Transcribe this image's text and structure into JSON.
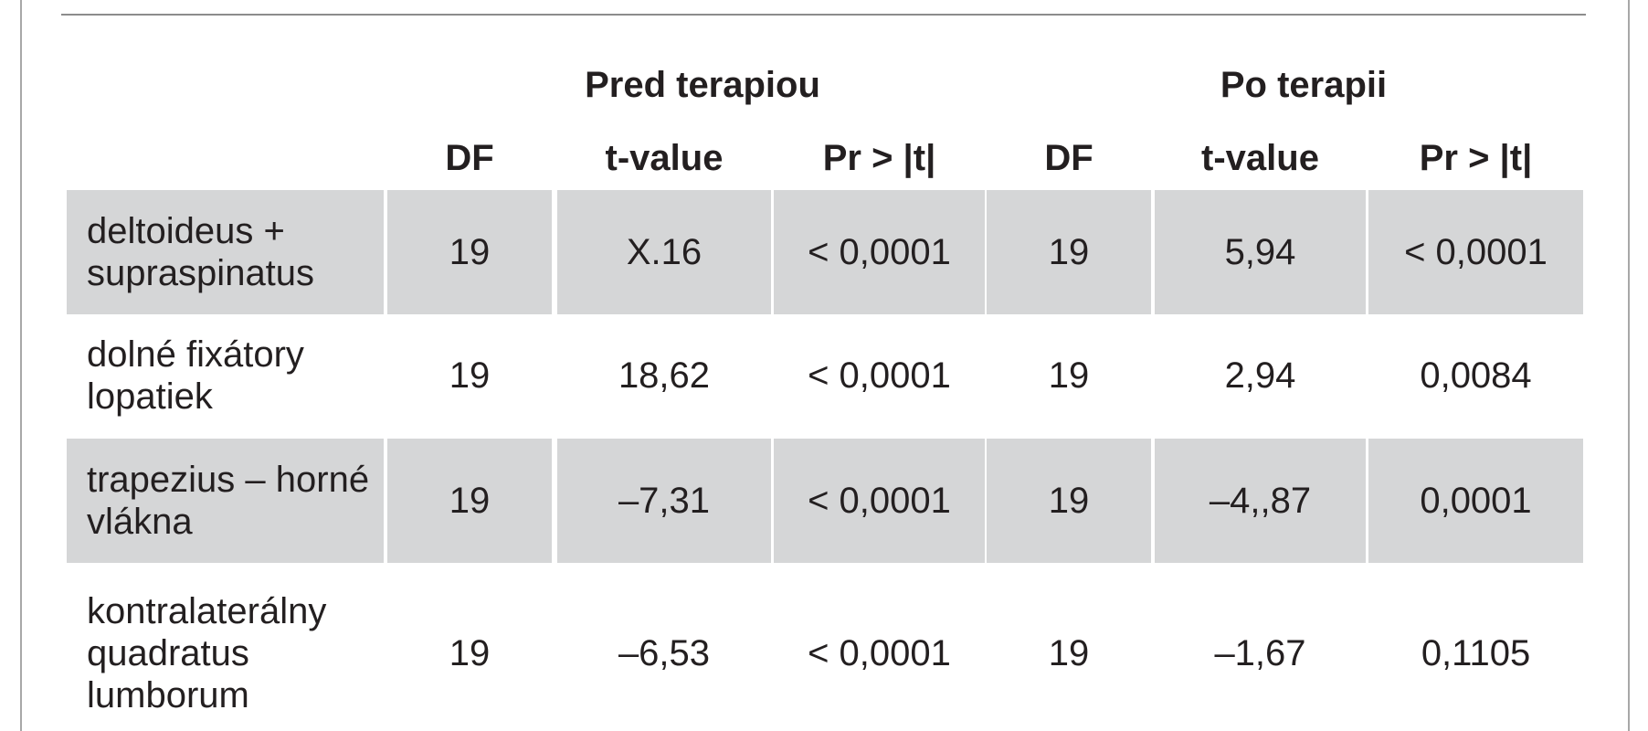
{
  "table": {
    "groups": [
      "Pred terapiou",
      "Po terapii"
    ],
    "columns": [
      "DF",
      "t-value",
      "Pr > |t|",
      "DF",
      "t-value",
      "Pr > |t|"
    ],
    "rows": [
      {
        "label": "deltoideus + supraspinatus",
        "values": [
          "19",
          "X.16",
          "< 0,0001",
          "19",
          "5,94",
          "< 0,0001"
        ]
      },
      {
        "label": "dolné fixátory lopatiek",
        "values": [
          "19",
          "18,62",
          "< 0,0001",
          "19",
          "2,94",
          "0,0084"
        ]
      },
      {
        "label": "trapezius – horné vlákna",
        "values": [
          "19",
          "–7,31",
          "< 0,0001",
          "19",
          "–4,,87",
          "0,0001"
        ]
      },
      {
        "label": "kontralaterálny quadratus lumborum",
        "values": [
          "19",
          "–6,53",
          "< 0,0001",
          "19",
          "–1,67",
          "0,1105"
        ]
      }
    ]
  }
}
